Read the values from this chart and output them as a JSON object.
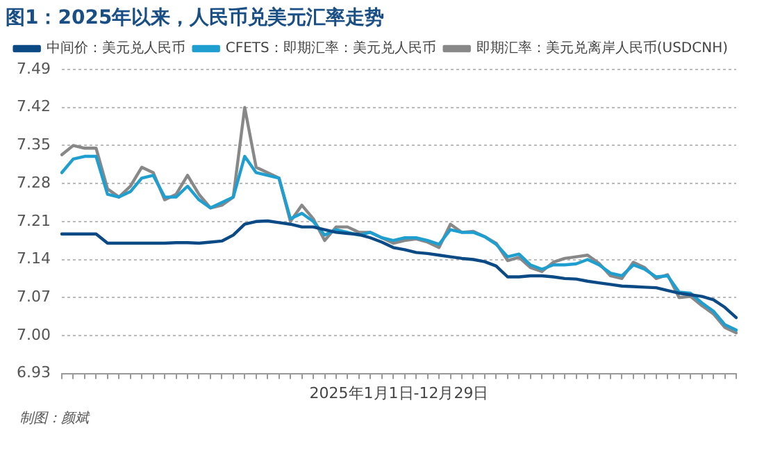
{
  "chart_data": {
    "type": "line",
    "title": "图1：2025年以来，人民币兑美元汇率走势",
    "xlabel": "2025年1月1日-12月29日",
    "categories": [
      null,
      null,
      null,
      null,
      null,
      null,
      null,
      null,
      null,
      null,
      null,
      null,
      null,
      null,
      null,
      null,
      null,
      null,
      null,
      null,
      null,
      null,
      null,
      null,
      null,
      null,
      null,
      null,
      null,
      null,
      null,
      null,
      null,
      null,
      null,
      null,
      null,
      null,
      null,
      null,
      null,
      null,
      null,
      null,
      null,
      null,
      null,
      null,
      null,
      null,
      null,
      null,
      null,
      null,
      null,
      null,
      null,
      null,
      null,
      null
    ],
    "series": [
      {
        "name": "中间价：美元兑人民币",
        "color": "#0b4a85",
        "values": [
          7.187,
          7.187,
          7.187,
          7.187,
          7.17,
          7.17,
          7.17,
          7.17,
          7.17,
          7.17,
          7.171,
          7.171,
          7.17,
          7.172,
          7.174,
          7.185,
          7.205,
          7.21,
          7.211,
          7.208,
          7.205,
          7.2,
          7.2,
          7.195,
          7.19,
          7.188,
          7.186,
          7.18,
          7.172,
          7.162,
          7.158,
          7.153,
          7.151,
          7.148,
          7.145,
          7.142,
          7.14,
          7.136,
          7.128,
          7.108,
          7.108,
          7.11,
          7.11,
          7.108,
          7.105,
          7.104,
          7.1,
          7.097,
          7.094,
          7.091,
          7.09,
          7.089,
          7.088,
          7.083,
          7.078,
          7.075,
          7.072,
          7.066,
          7.052,
          7.033
        ]
      },
      {
        "name": "CFETS：即期汇率：美元兑人民币",
        "color": "#1f9fd0",
        "values": [
          7.3,
          7.325,
          7.33,
          7.33,
          7.26,
          7.255,
          7.265,
          7.29,
          7.295,
          7.255,
          7.255,
          7.275,
          7.25,
          7.235,
          7.245,
          7.255,
          7.33,
          7.3,
          7.295,
          7.29,
          7.215,
          7.225,
          7.21,
          7.185,
          7.195,
          7.19,
          7.185,
          7.19,
          7.18,
          7.175,
          7.18,
          7.18,
          7.175,
          7.168,
          7.195,
          7.19,
          7.19,
          7.182,
          7.168,
          7.145,
          7.15,
          7.13,
          7.122,
          7.13,
          7.13,
          7.132,
          7.14,
          7.13,
          7.115,
          7.11,
          7.13,
          7.122,
          7.108,
          7.11,
          7.08,
          7.078,
          7.06,
          7.045,
          7.02,
          7.01
        ]
      },
      {
        "name": "即期汇率：美元兑离岸人民币(USDCNH)",
        "color": "#888888",
        "values": [
          7.333,
          7.35,
          7.345,
          7.345,
          7.27,
          7.255,
          7.275,
          7.31,
          7.3,
          7.25,
          7.26,
          7.295,
          7.26,
          7.235,
          7.24,
          7.255,
          7.42,
          7.31,
          7.3,
          7.29,
          7.21,
          7.24,
          7.215,
          7.175,
          7.2,
          7.2,
          7.19,
          7.19,
          7.18,
          7.17,
          7.175,
          7.178,
          7.172,
          7.162,
          7.205,
          7.19,
          7.192,
          7.182,
          7.17,
          7.138,
          7.144,
          7.125,
          7.118,
          7.135,
          7.142,
          7.145,
          7.148,
          7.133,
          7.11,
          7.105,
          7.135,
          7.125,
          7.105,
          7.112,
          7.07,
          7.072,
          7.055,
          7.04,
          7.015,
          7.005
        ]
      }
    ],
    "ylim": [
      6.93,
      7.49
    ],
    "yticks": [
      6.93,
      {
        "value": 7.0,
        "label": "7.00"
      },
      7.07,
      7.14,
      7.21,
      7.28,
      7.35,
      7.42,
      7.49
    ],
    "grid": "y",
    "legend": "top",
    "marker": "none",
    "line_style": "solid",
    "tick_labels": "y",
    "annotations": [
      "制图：颜斌"
    ]
  }
}
